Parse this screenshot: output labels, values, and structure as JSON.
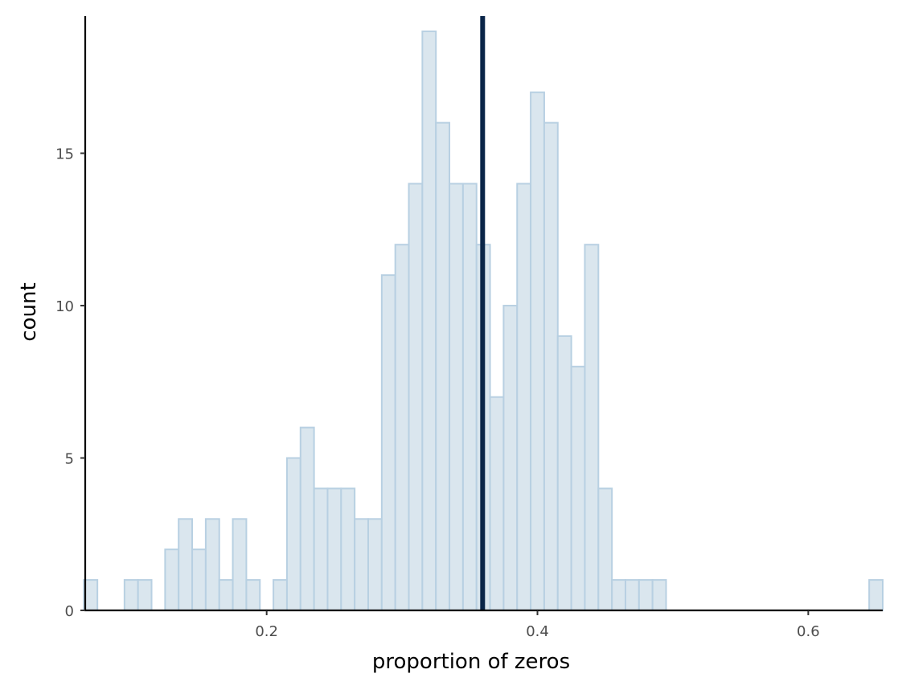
{
  "chart_data": {
    "type": "bar",
    "subtype": "histogram",
    "title": "",
    "xlabel": "proportion of zeros",
    "ylabel": "count",
    "xlim": [
      0.066,
      0.655
    ],
    "ylim": [
      0,
      19.5
    ],
    "bin_width": 0.01,
    "x_ticks": [
      0.2,
      0.4,
      0.6
    ],
    "x_tick_labels": [
      "0.2",
      "0.4",
      "0.6"
    ],
    "y_ticks": [
      0,
      5,
      10,
      15
    ],
    "y_tick_labels": [
      "0",
      "5",
      "10",
      "15"
    ],
    "grid": false,
    "legend": "none",
    "bins": [
      {
        "x": 0.07,
        "count": 1
      },
      {
        "x": 0.1,
        "count": 1
      },
      {
        "x": 0.11,
        "count": 1
      },
      {
        "x": 0.13,
        "count": 2
      },
      {
        "x": 0.14,
        "count": 3
      },
      {
        "x": 0.15,
        "count": 2
      },
      {
        "x": 0.16,
        "count": 3
      },
      {
        "x": 0.17,
        "count": 1
      },
      {
        "x": 0.18,
        "count": 3
      },
      {
        "x": 0.19,
        "count": 1
      },
      {
        "x": 0.21,
        "count": 1
      },
      {
        "x": 0.22,
        "count": 5
      },
      {
        "x": 0.23,
        "count": 6
      },
      {
        "x": 0.24,
        "count": 4
      },
      {
        "x": 0.25,
        "count": 4
      },
      {
        "x": 0.26,
        "count": 4
      },
      {
        "x": 0.27,
        "count": 3
      },
      {
        "x": 0.28,
        "count": 3
      },
      {
        "x": 0.29,
        "count": 11
      },
      {
        "x": 0.3,
        "count": 12
      },
      {
        "x": 0.31,
        "count": 14
      },
      {
        "x": 0.32,
        "count": 19
      },
      {
        "x": 0.33,
        "count": 16
      },
      {
        "x": 0.34,
        "count": 14
      },
      {
        "x": 0.35,
        "count": 14
      },
      {
        "x": 0.36,
        "count": 12
      },
      {
        "x": 0.37,
        "count": 7
      },
      {
        "x": 0.38,
        "count": 10
      },
      {
        "x": 0.39,
        "count": 14
      },
      {
        "x": 0.4,
        "count": 17
      },
      {
        "x": 0.41,
        "count": 16
      },
      {
        "x": 0.42,
        "count": 9
      },
      {
        "x": 0.43,
        "count": 8
      },
      {
        "x": 0.44,
        "count": 12
      },
      {
        "x": 0.45,
        "count": 4
      },
      {
        "x": 0.46,
        "count": 1
      },
      {
        "x": 0.47,
        "count": 1
      },
      {
        "x": 0.48,
        "count": 1
      },
      {
        "x": 0.49,
        "count": 1
      },
      {
        "x": 0.65,
        "count": 1
      }
    ],
    "reference_line": {
      "x": 0.3595
    },
    "colors": {
      "bar_fill": "#dae6ee",
      "bar_stroke": "#b8d0e2",
      "reference_line": "#0a2548",
      "axis": "#000000"
    }
  }
}
